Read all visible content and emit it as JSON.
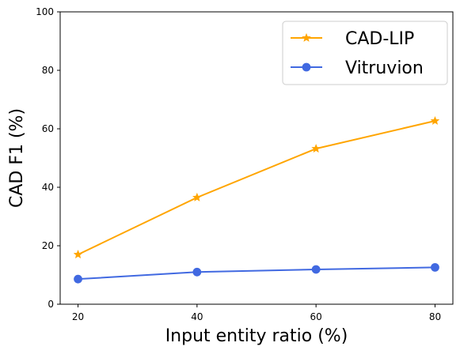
{
  "chart_data": {
    "type": "line",
    "xlabel": "Input entity ratio (%)",
    "ylabel": "CAD F1 (%)",
    "x": [
      20,
      40,
      60,
      80
    ],
    "xlim": [
      17,
      83
    ],
    "ylim": [
      0,
      100
    ],
    "xticks": [
      "20",
      "40",
      "60",
      "80"
    ],
    "yticks": [
      "0",
      "20",
      "40",
      "60",
      "80",
      "100"
    ],
    "grid": false,
    "legend_position": "top-right",
    "series": [
      {
        "name": "CAD-LIP",
        "values": [
          17.0,
          36.5,
          53.2,
          62.7
        ],
        "color": "#FFA500",
        "marker": "star"
      },
      {
        "name": "Vitruvion",
        "values": [
          8.6,
          11.0,
          11.9,
          12.6
        ],
        "color": "#4169E1",
        "marker": "circle"
      }
    ]
  }
}
